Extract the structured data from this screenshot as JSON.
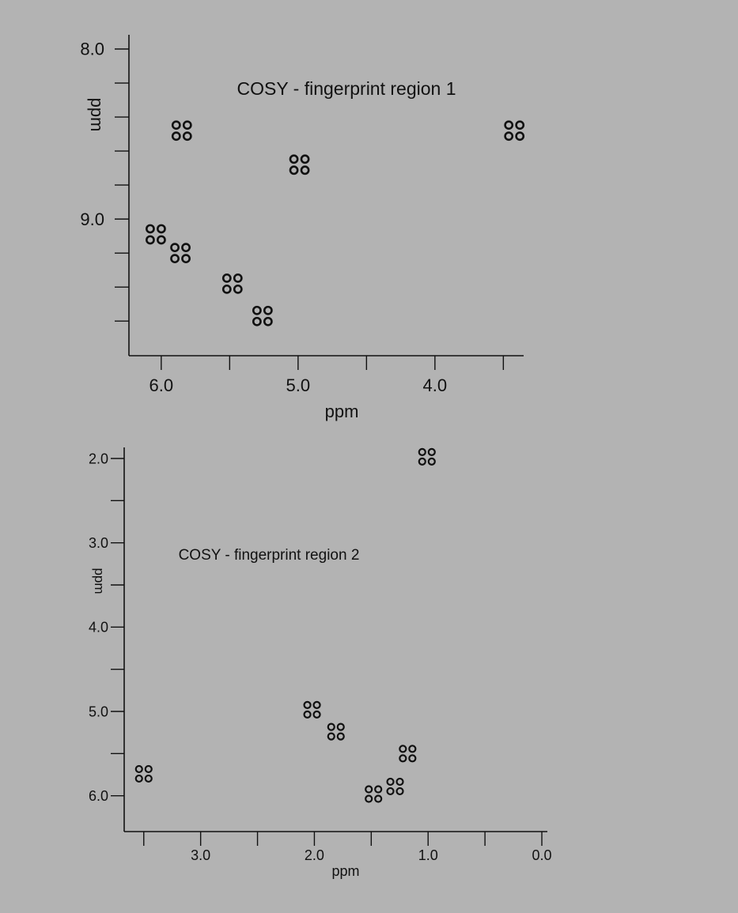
{
  "colors": {
    "background": "#b3b3b3",
    "ink": "#111111"
  },
  "chart_data": [
    {
      "type": "scatter",
      "title": "COSY  - fingerprint region 1",
      "xlabel": "ppm",
      "ylabel": "ppm",
      "x_reversed": true,
      "y_reversed": true,
      "xlim": [
        6.08,
        3.45
      ],
      "ylim": [
        8.0,
        9.72
      ],
      "x_major_ticks": [
        6.0,
        5.0,
        4.0
      ],
      "x_minor_ticks": [
        5.5,
        4.5,
        3.5
      ],
      "x_tick_labels": [
        "6.0",
        "5.0",
        "4.0"
      ],
      "y_major_ticks": [
        8.0,
        9.0
      ],
      "y_minor_ticks": [
        8.2,
        8.4,
        8.6,
        8.8,
        9.2,
        9.4,
        9.6
      ],
      "y_tick_labels": [
        "8.0",
        "9.0"
      ],
      "marker": "quartet of open circles",
      "points": [
        {
          "x": 5.85,
          "y": 8.48
        },
        {
          "x": 4.99,
          "y": 8.68
        },
        {
          "x": 3.42,
          "y": 8.48
        },
        {
          "x": 6.04,
          "y": 9.09
        },
        {
          "x": 5.86,
          "y": 9.2
        },
        {
          "x": 5.48,
          "y": 9.38
        },
        {
          "x": 5.26,
          "y": 9.57
        }
      ]
    },
    {
      "type": "scatter",
      "title": "COSY  - fingerprint region 2",
      "xlabel": "ppm",
      "ylabel": "ppm",
      "x_reversed": true,
      "y_reversed": true,
      "xlim": [
        3.7,
        0.0
      ],
      "ylim": [
        2.0,
        6.2
      ],
      "x_major_ticks": [
        3.0,
        2.0,
        1.0,
        0.0
      ],
      "x_minor_ticks": [
        3.5,
        2.5,
        1.5,
        0.5
      ],
      "x_tick_labels": [
        "3.0",
        "2.0",
        "1.0",
        "0.0"
      ],
      "y_major_ticks": [
        2.0,
        3.0,
        4.0,
        5.0,
        6.0
      ],
      "y_minor_ticks": [
        2.5,
        3.5,
        4.5,
        5.5
      ],
      "y_tick_labels": [
        "2.0",
        "3.0",
        "4.0",
        "5.0",
        "6.0"
      ],
      "marker": "quartet of open circles",
      "points": [
        {
          "x": 1.01,
          "y": 1.98
        },
        {
          "x": 3.5,
          "y": 5.74
        },
        {
          "x": 2.02,
          "y": 4.98
        },
        {
          "x": 1.81,
          "y": 5.24
        },
        {
          "x": 1.18,
          "y": 5.5
        },
        {
          "x": 1.48,
          "y": 5.98
        },
        {
          "x": 1.29,
          "y": 5.89
        }
      ]
    }
  ]
}
